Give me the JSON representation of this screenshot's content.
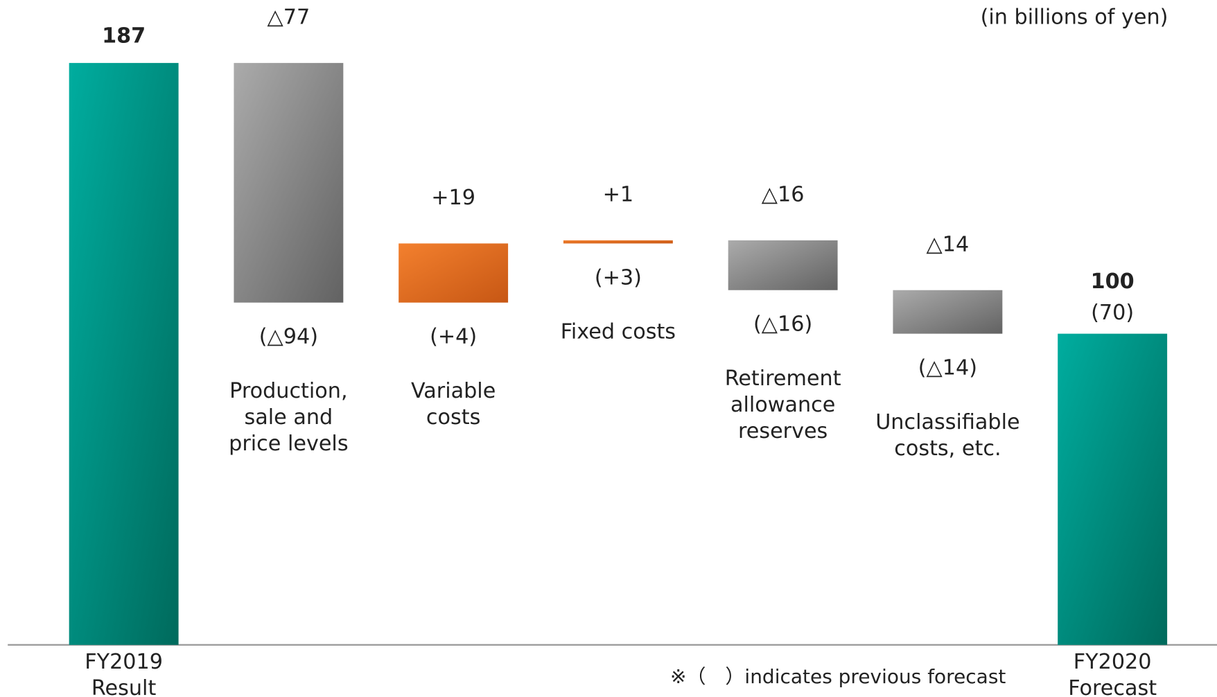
{
  "chart_data": {
    "type": "waterfall",
    "unit_note": "(in billions of yen)",
    "footnote": "※（　）indicates previous forecast",
    "categories": [
      [
        "FY2019",
        "Result"
      ],
      [
        "Production,",
        "sale and",
        "price levels"
      ],
      [
        "Variable",
        "costs"
      ],
      [
        "Fixed costs"
      ],
      [
        "Retirement",
        "allowance",
        "reserves"
      ],
      [
        "Unclassifiable",
        "costs, etc."
      ],
      [
        "FY2020",
        "Forecast"
      ]
    ],
    "values": [
      187,
      -77,
      19,
      1,
      -16,
      -14,
      100
    ],
    "value_labels": [
      "187",
      "△77",
      "+19",
      "+1",
      "△16",
      "△14",
      "100"
    ],
    "previous_labels": [
      null,
      "(△94)",
      "(+4)",
      "(+3)",
      "(△16)",
      "(△14)",
      "(70)"
    ],
    "ylim": [
      0,
      187
    ],
    "total_color": [
      "#00ad9f",
      "#006a5c"
    ],
    "increase_color": [
      "#f3802e",
      "#c75714"
    ],
    "decrease_color": [
      "#ababab",
      "#626262"
    ]
  }
}
